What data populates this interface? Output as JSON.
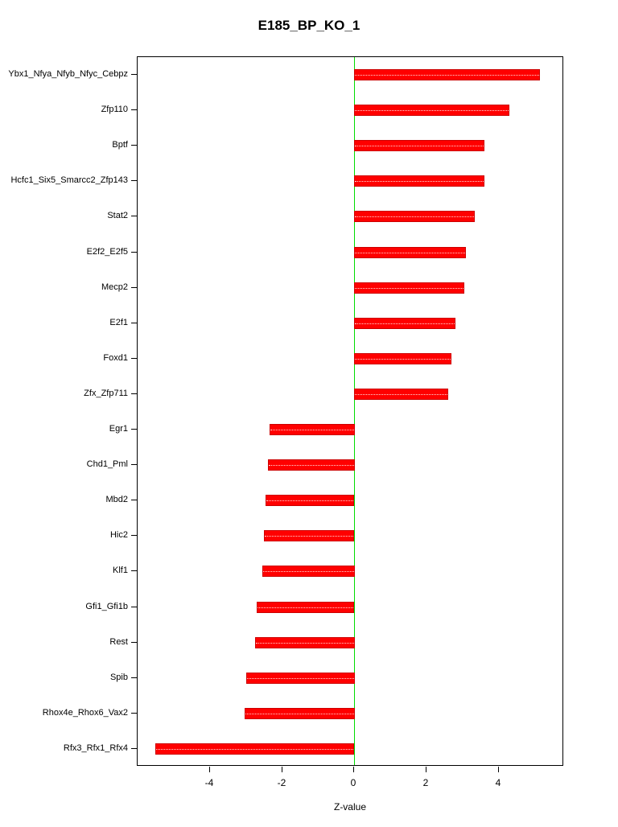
{
  "title": "E185_BP_KO_1",
  "chart_data": {
    "type": "bar",
    "orientation": "horizontal",
    "title": "E185_BP_KO_1",
    "xlabel": "Z-value",
    "ylabel": "",
    "xlim": [
      -6.0,
      5.8
    ],
    "xticks": [
      -4,
      -2,
      0,
      2,
      4
    ],
    "grid": false,
    "legend": false,
    "bar_color": "#FF0000",
    "bar_border_color": "#CC0000",
    "zero_line_color": "#00DD00",
    "categories": [
      "Ybx1_Nfya_Nfyb_Nfyc_Cebpz",
      "Zfp110",
      "Bptf",
      "Hcfc1_Six5_Smarcc2_Zfp143",
      "Stat2",
      "E2f2_E2f5",
      "Mecp2",
      "E2f1",
      "Foxd1",
      "Zfx_Zfp711",
      "Egr1",
      "Chd1_Pml",
      "Mbd2",
      "Hic2",
      "Klf1",
      "Gfi1_Gfi1b",
      "Rest",
      "Spib",
      "Rhox4e_Rhox6_Vax2",
      "Rfx3_Rfx1_Rfx4"
    ],
    "values": [
      5.15,
      4.3,
      3.6,
      3.6,
      3.35,
      3.1,
      3.05,
      2.8,
      2.7,
      2.6,
      -2.35,
      -2.4,
      -2.45,
      -2.5,
      -2.55,
      -2.7,
      -2.75,
      -3.0,
      -3.05,
      -5.5
    ]
  }
}
